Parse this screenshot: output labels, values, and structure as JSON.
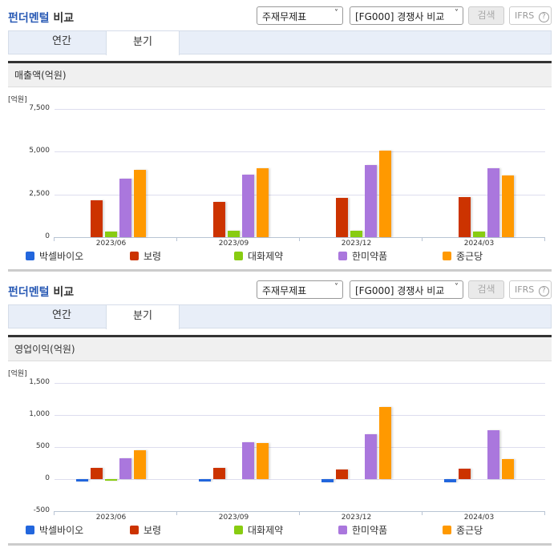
{
  "colors": {
    "박셀바이오": "#2266dd",
    "보령": "#cc3300",
    "대화제약": "#88cc11",
    "한미약품": "#aa77dd",
    "종근당": "#ff9900"
  },
  "panels": [
    {
      "header": {
        "title_blue": "펀더멘털",
        "title_dark": "비교",
        "select_statement": "주재무제표",
        "select_group": "[FG000] 경쟁사 비교",
        "search_label": "검색",
        "ifrs_label": "IFRS",
        "help_icon": "?"
      },
      "tabs": [
        {
          "label": "연간",
          "active": false
        },
        {
          "label": "분기",
          "active": true
        }
      ],
      "chart_title": "매출액(억원)",
      "unit": "[억원]"
    },
    {
      "header": {
        "title_blue": "펀더멘털",
        "title_dark": "비교",
        "select_statement": "주재무제표",
        "select_group": "[FG000] 경쟁사 비교",
        "search_label": "검색",
        "ifrs_label": "IFRS",
        "help_icon": "?"
      },
      "tabs": [
        {
          "label": "연간",
          "active": false
        },
        {
          "label": "분기",
          "active": true
        }
      ],
      "chart_title": "영업이익(억원)",
      "unit": "[억원]"
    }
  ],
  "legend": [
    "박셀바이오",
    "보령",
    "대화제약",
    "한미약품",
    "종근당"
  ],
  "chart_data": [
    {
      "type": "bar",
      "title": "매출액(억원)",
      "xlabel": "",
      "ylabel": "[억원]",
      "categories": [
        "2023/06",
        "2023/09",
        "2023/12",
        "2024/03"
      ],
      "yticks": [
        "7,500",
        "5,000",
        "2,500",
        "0"
      ],
      "ylim": [
        0,
        7500
      ],
      "grid": true,
      "legend_position": "bottom",
      "series": [
        {
          "name": "박셀바이오",
          "values": [
            0,
            0,
            0,
            0
          ]
        },
        {
          "name": "보령",
          "values": [
            2160,
            2070,
            2300,
            2350
          ]
        },
        {
          "name": "대화제약",
          "values": [
            330,
            370,
            370,
            330
          ]
        },
        {
          "name": "한미약품",
          "values": [
            3420,
            3660,
            4230,
            4030
          ]
        },
        {
          "name": "종근당",
          "values": [
            3940,
            4030,
            5060,
            3610
          ]
        }
      ]
    },
    {
      "type": "bar",
      "title": "영업이익(억원)",
      "xlabel": "",
      "ylabel": "[억원]",
      "categories": [
        "2023/06",
        "2023/09",
        "2023/12",
        "2024/03"
      ],
      "yticks": [
        "1,500",
        "1,000",
        "500",
        "0",
        "-500"
      ],
      "ylim": [
        -500,
        1500
      ],
      "grid": true,
      "legend_position": "bottom",
      "series": [
        {
          "name": "박셀바이오",
          "values": [
            -40,
            -40,
            -50,
            -50
          ]
        },
        {
          "name": "보령",
          "values": [
            180,
            180,
            150,
            160
          ]
        },
        {
          "name": "대화제약",
          "values": [
            -20,
            0,
            0,
            0
          ]
        },
        {
          "name": "한미약품",
          "values": [
            330,
            570,
            700,
            760
          ]
        },
        {
          "name": "종근당",
          "values": [
            450,
            560,
            1130,
            310
          ]
        }
      ]
    }
  ]
}
